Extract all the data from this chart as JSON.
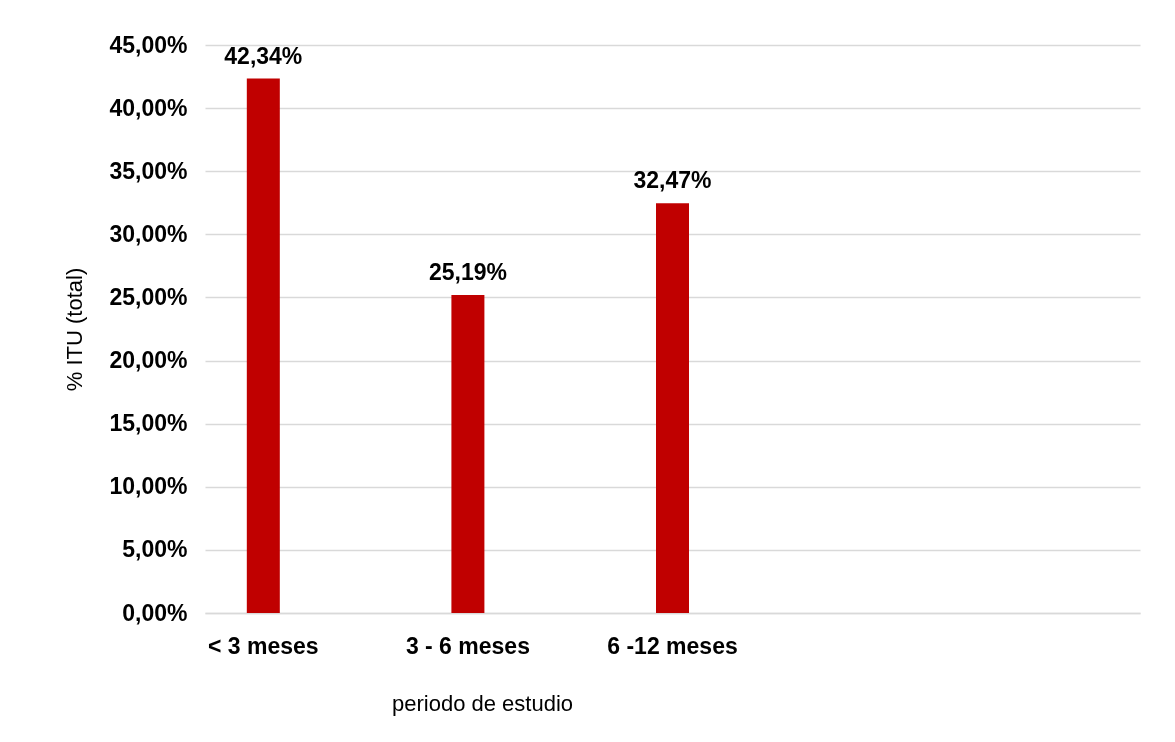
{
  "chart_data": {
    "type": "bar",
    "xlabel": "periodo de estudio",
    "ylabel": "% ITU (total)",
    "categories": [
      "< 3 meses",
      "3 - 6 meses",
      "6 -12 meses",
      null,
      null
    ],
    "values": [
      42.34,
      25.19,
      32.47,
      null,
      null
    ],
    "value_labels": [
      "42,34%",
      "25,19%",
      "32,47%",
      null,
      null
    ],
    "color": "#c00000",
    "ylim": [
      0,
      45
    ],
    "yticks": [
      {
        "value": 0,
        "label": "0,00%"
      },
      {
        "value": 5,
        "label": "5,00%"
      },
      {
        "value": 10,
        "label": "10,00%"
      },
      {
        "value": 15,
        "label": "15,00%"
      },
      {
        "value": 20,
        "label": "20,00%"
      },
      {
        "value": 25,
        "label": "25,00%"
      },
      {
        "value": 30,
        "label": "30,00%"
      },
      {
        "value": 35,
        "label": "35,00%"
      },
      {
        "value": 40,
        "label": "40,00%"
      },
      {
        "value": 45,
        "label": "45,00%"
      }
    ],
    "grid": "y"
  }
}
